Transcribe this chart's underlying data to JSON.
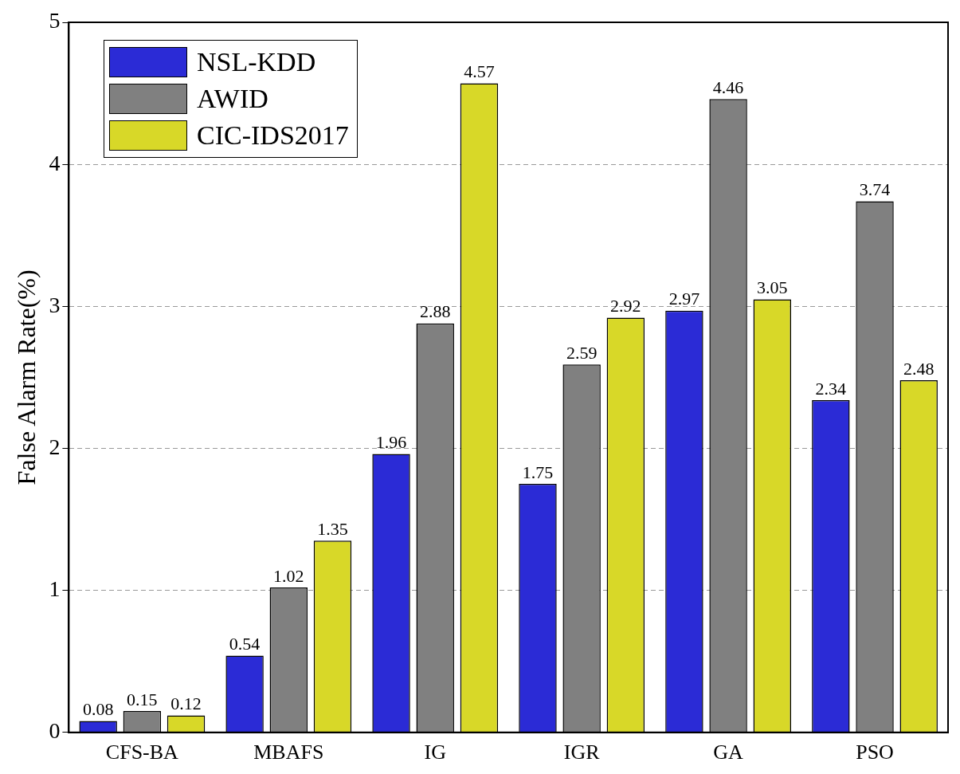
{
  "chart_data": {
    "type": "bar",
    "ylabel": "False Alarm Rate(%)",
    "categories": [
      "CFS-BA",
      "MBAFS",
      "IG",
      "IGR",
      "GA",
      "PSO"
    ],
    "series": [
      {
        "name": "NSL-KDD",
        "color": "#2b2bd6",
        "values": [
          0.08,
          0.54,
          1.96,
          1.75,
          2.97,
          2.34
        ]
      },
      {
        "name": "AWID",
        "color": "#808080",
        "values": [
          0.15,
          1.02,
          2.88,
          2.59,
          4.46,
          3.74
        ]
      },
      {
        "name": "CIC-IDS2017",
        "color": "#d8d828",
        "values": [
          0.12,
          1.35,
          4.57,
          2.92,
          3.05,
          2.48
        ]
      }
    ],
    "ylim": [
      0,
      5
    ],
    "yticks": [
      0,
      1,
      2,
      3,
      4,
      5
    ],
    "grid": "y",
    "legend": "top left",
    "data_labels": true
  }
}
